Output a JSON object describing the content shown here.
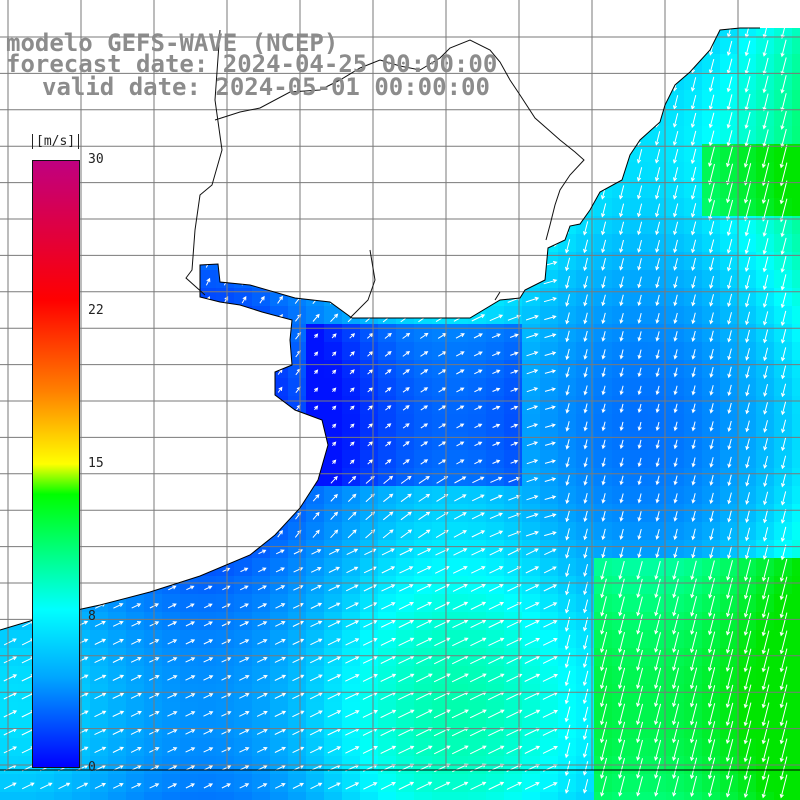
{
  "title": {
    "line1": "modelo GEFS-WAVE (NCEP)",
    "line2": "forecast date: 2024-04-25 00:00:00",
    "line3": "valid date: 2024-05-01 00:00:00"
  },
  "colorbar": {
    "unit": "[m/s]",
    "ticks": [
      "30",
      "22",
      "15",
      "8",
      "0"
    ],
    "range": [
      0,
      30
    ],
    "colors": [
      "#0000ff",
      "#00a8ff",
      "#00ffff",
      "#00ff00",
      "#ffff00",
      "#ff8000",
      "#ff0000",
      "#c00080"
    ]
  },
  "map": {
    "land_color": "#ffffff",
    "grid_color": "#7a7a7a",
    "arrow_color": "#ffffff",
    "coast_color": "#000000"
  }
}
